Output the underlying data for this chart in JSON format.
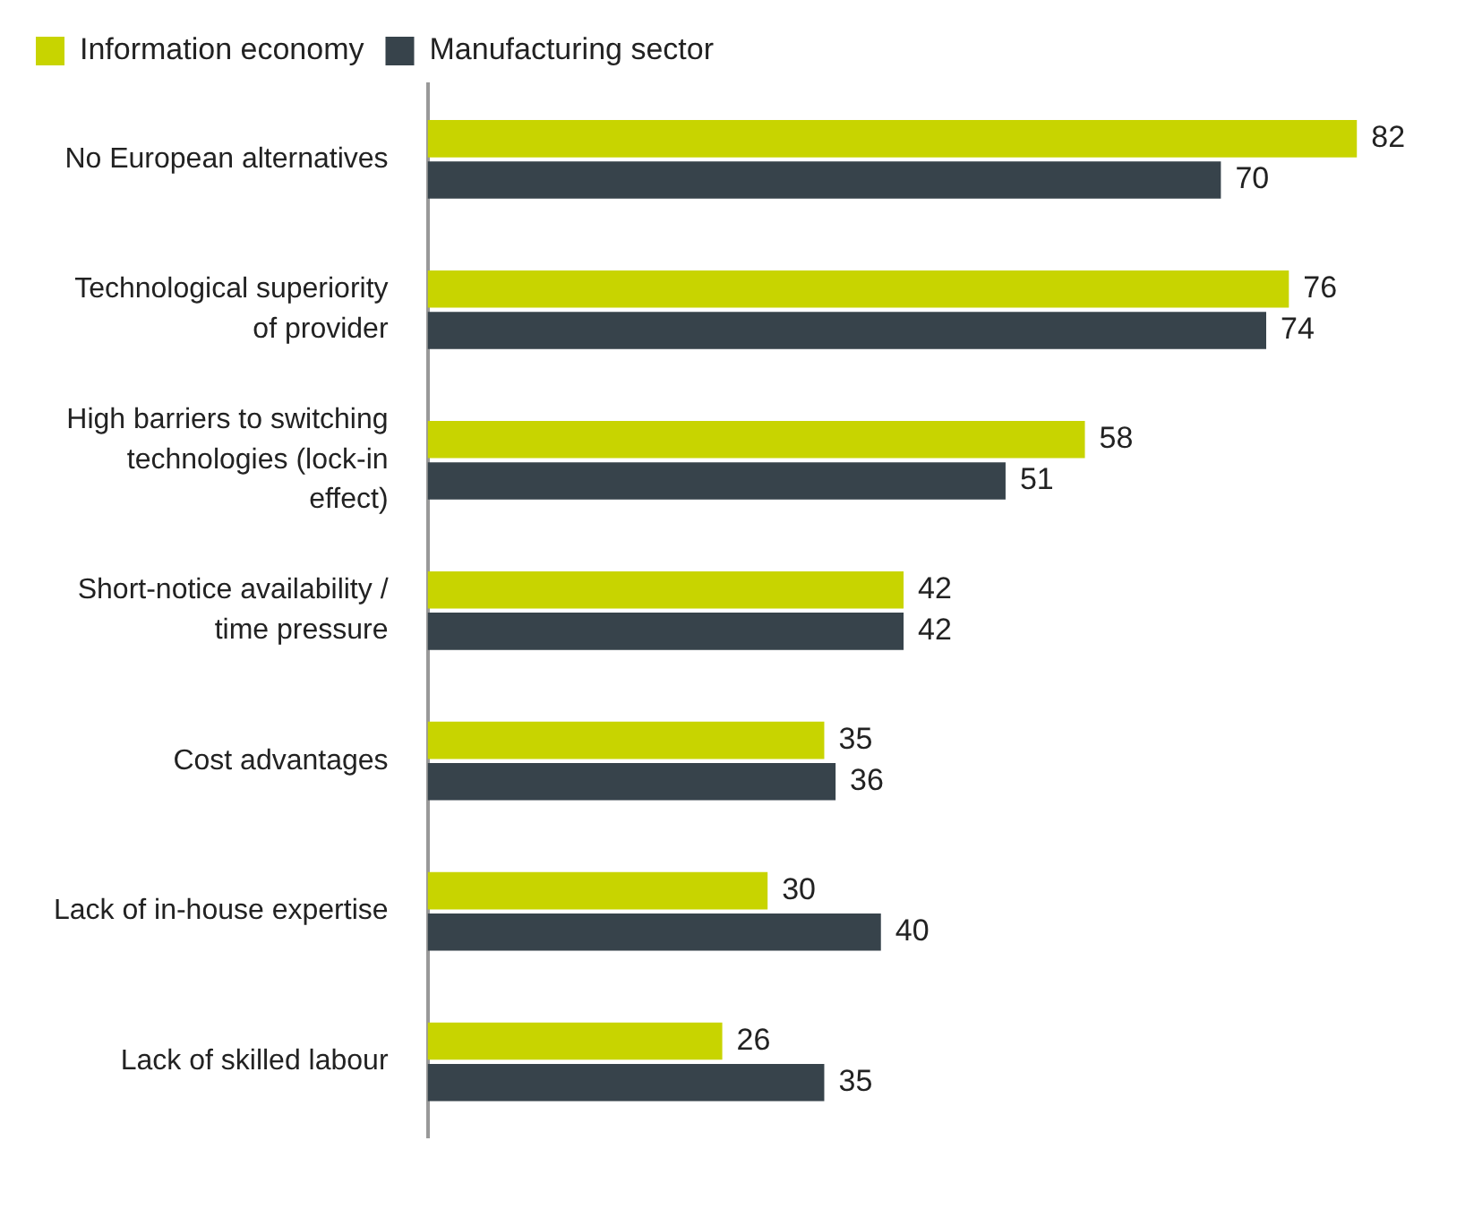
{
  "chart_data": {
    "type": "bar",
    "orientation": "horizontal",
    "data_labels": true,
    "legend": "top",
    "categories": [
      "No European alternatives",
      "Technological superiority of provider",
      "High barriers to switching technologies (lock-in effect)",
      "Short-notice availability / time pressure",
      "Cost advantages",
      "Lack of in-house expertise",
      "Lack of skilled labour"
    ],
    "series": [
      {
        "name": "Information economy",
        "color": "#c8d400",
        "values": [
          82,
          76,
          58,
          42,
          35,
          30,
          26
        ]
      },
      {
        "name": "Manufacturing sector",
        "color": "#37434b",
        "values": [
          70,
          74,
          51,
          42,
          36,
          40,
          35
        ]
      }
    ]
  }
}
